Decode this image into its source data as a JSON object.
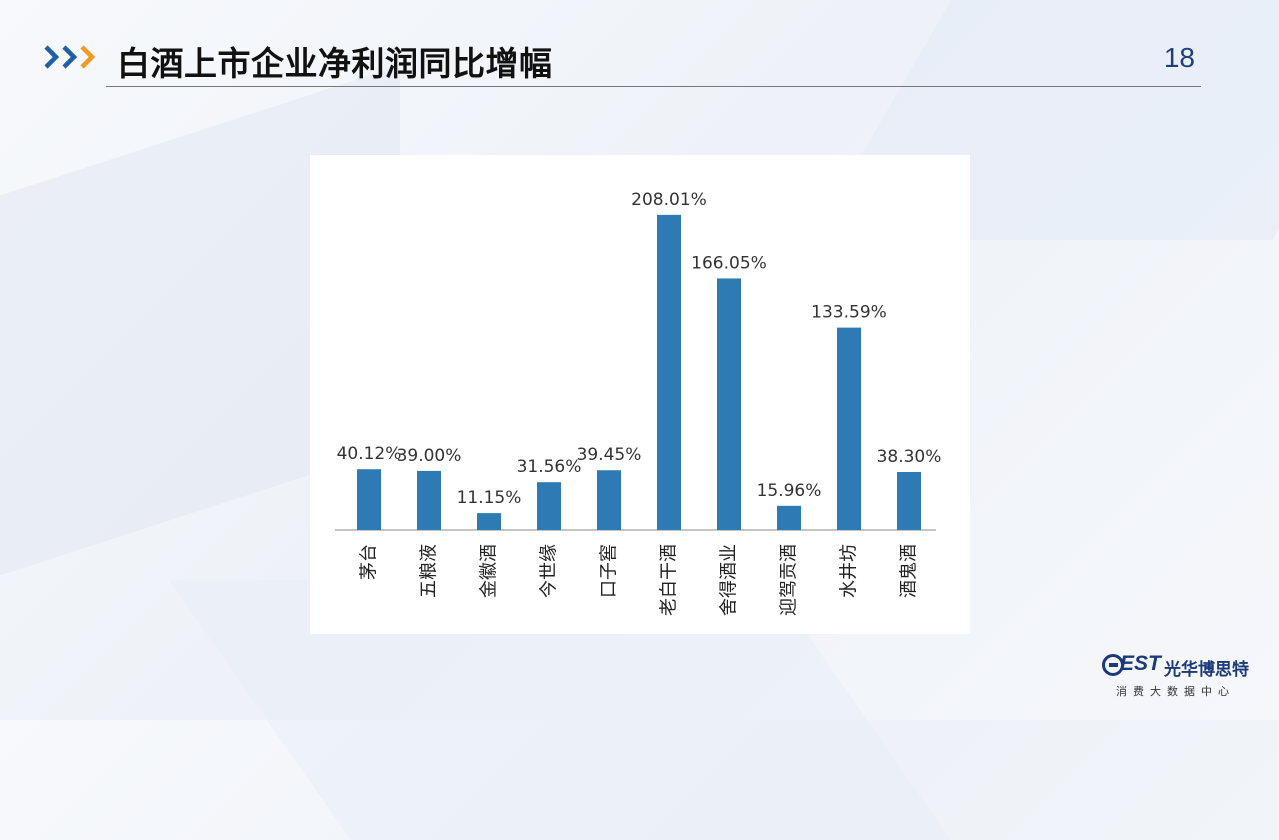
{
  "slide": {
    "title": "白酒上市企业净利润同比增幅",
    "page_number": "18"
  },
  "logo": {
    "brand": "EST",
    "name": "光华博思特",
    "subtitle": "消费大数据中心"
  },
  "colors": {
    "bar": "#2e7ab5",
    "accent_blue": "#1f5fa8",
    "accent_orange": "#f29a1f"
  },
  "chart_data": {
    "type": "bar",
    "title": "",
    "xlabel": "",
    "ylabel": "",
    "categories": [
      "茅台",
      "五粮液",
      "金徽酒",
      "今世缘",
      "口子窖",
      "老白干酒",
      "舍得酒业",
      "迎驾贡酒",
      "水井坊",
      "酒鬼酒"
    ],
    "values": [
      40.12,
      39.0,
      11.15,
      31.56,
      39.45,
      208.01,
      166.05,
      15.96,
      133.59,
      38.3
    ],
    "value_labels": [
      "40.12%",
      "39.00%",
      "11.15%",
      "31.56%",
      "39.45%",
      "208.01%",
      "166.05%",
      "15.96%",
      "133.59%",
      "38.30%"
    ],
    "ylim": [
      0,
      220
    ],
    "grid": false,
    "legend": "none"
  }
}
